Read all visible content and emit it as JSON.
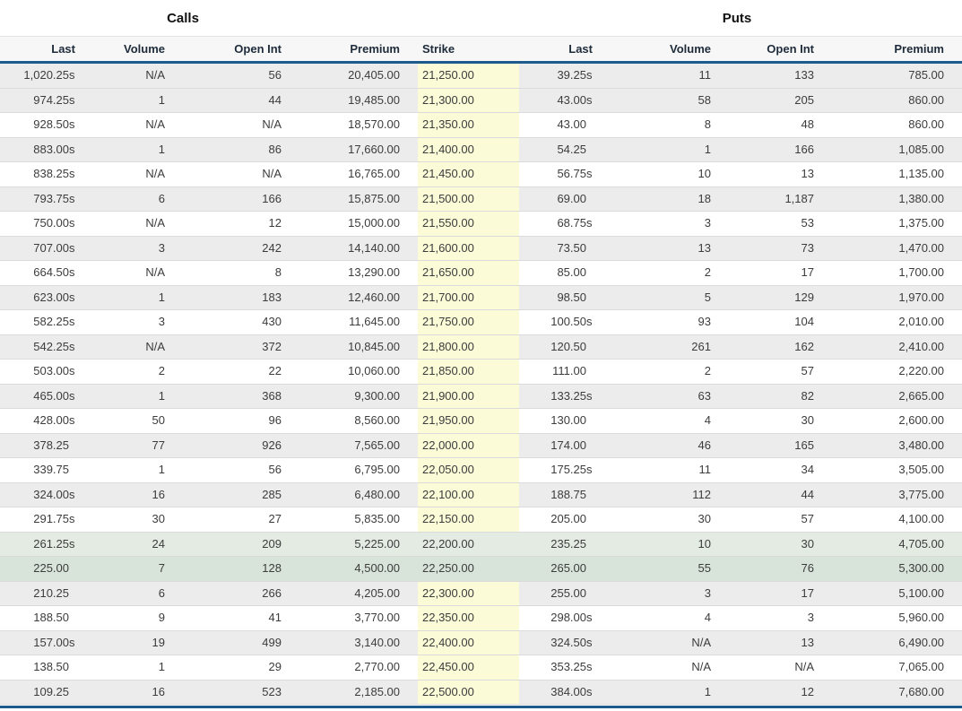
{
  "section_titles": {
    "calls": "Calls",
    "puts": "Puts"
  },
  "headers": {
    "calls": [
      "Last",
      "Volume",
      "Open Int",
      "Premium"
    ],
    "strike": "Strike",
    "puts": [
      "Last",
      "Volume",
      "Open Int",
      "Premium"
    ]
  },
  "colors": {
    "header_underline": "#1e5b8d",
    "bottom_bar": "#1e5b8d",
    "strike_column_bg": "#fbfbd8",
    "alt_row_bg": "#ececec",
    "highlight_row_light_green": "#e3ebe3",
    "highlight_row_dark_green": "#d8e3d9"
  },
  "rows": [
    {
      "calls": [
        "1,020.25s",
        "N/A",
        "56",
        "20,405.00"
      ],
      "strike": "21,250.00",
      "puts": [
        "39.25s",
        "11",
        "133",
        "785.00"
      ],
      "hl": 0
    },
    {
      "calls": [
        "974.25s",
        "1",
        "44",
        "19,485.00"
      ],
      "strike": "21,300.00",
      "puts": [
        "43.00s",
        "58",
        "205",
        "860.00"
      ],
      "hl": 0
    },
    {
      "calls": [
        "928.50s",
        "N/A",
        "N/A",
        "18,570.00"
      ],
      "strike": "21,350.00",
      "puts": [
        "43.00",
        "8",
        "48",
        "860.00"
      ],
      "hl": 0
    },
    {
      "calls": [
        "883.00s",
        "1",
        "86",
        "17,660.00"
      ],
      "strike": "21,400.00",
      "puts": [
        "54.25",
        "1",
        "166",
        "1,085.00"
      ],
      "hl": 0
    },
    {
      "calls": [
        "838.25s",
        "N/A",
        "N/A",
        "16,765.00"
      ],
      "strike": "21,450.00",
      "puts": [
        "56.75s",
        "10",
        "13",
        "1,135.00"
      ],
      "hl": 0
    },
    {
      "calls": [
        "793.75s",
        "6",
        "166",
        "15,875.00"
      ],
      "strike": "21,500.00",
      "puts": [
        "69.00",
        "18",
        "1,187",
        "1,380.00"
      ],
      "hl": 0
    },
    {
      "calls": [
        "750.00s",
        "N/A",
        "12",
        "15,000.00"
      ],
      "strike": "21,550.00",
      "puts": [
        "68.75s",
        "3",
        "53",
        "1,375.00"
      ],
      "hl": 0
    },
    {
      "calls": [
        "707.00s",
        "3",
        "242",
        "14,140.00"
      ],
      "strike": "21,600.00",
      "puts": [
        "73.50",
        "13",
        "73",
        "1,470.00"
      ],
      "hl": 0
    },
    {
      "calls": [
        "664.50s",
        "N/A",
        "8",
        "13,290.00"
      ],
      "strike": "21,650.00",
      "puts": [
        "85.00",
        "2",
        "17",
        "1,700.00"
      ],
      "hl": 0
    },
    {
      "calls": [
        "623.00s",
        "1",
        "183",
        "12,460.00"
      ],
      "strike": "21,700.00",
      "puts": [
        "98.50",
        "5",
        "129",
        "1,970.00"
      ],
      "hl": 0
    },
    {
      "calls": [
        "582.25s",
        "3",
        "430",
        "11,645.00"
      ],
      "strike": "21,750.00",
      "puts": [
        "100.50s",
        "93",
        "104",
        "2,010.00"
      ],
      "hl": 0
    },
    {
      "calls": [
        "542.25s",
        "N/A",
        "372",
        "10,845.00"
      ],
      "strike": "21,800.00",
      "puts": [
        "120.50",
        "261",
        "162",
        "2,410.00"
      ],
      "hl": 0
    },
    {
      "calls": [
        "503.00s",
        "2",
        "22",
        "10,060.00"
      ],
      "strike": "21,850.00",
      "puts": [
        "111.00",
        "2",
        "57",
        "2,220.00"
      ],
      "hl": 0
    },
    {
      "calls": [
        "465.00s",
        "1",
        "368",
        "9,300.00"
      ],
      "strike": "21,900.00",
      "puts": [
        "133.25s",
        "63",
        "82",
        "2,665.00"
      ],
      "hl": 0
    },
    {
      "calls": [
        "428.00s",
        "50",
        "96",
        "8,560.00"
      ],
      "strike": "21,950.00",
      "puts": [
        "130.00",
        "4",
        "30",
        "2,600.00"
      ],
      "hl": 0
    },
    {
      "calls": [
        "378.25",
        "77",
        "926",
        "7,565.00"
      ],
      "strike": "22,000.00",
      "puts": [
        "174.00",
        "46",
        "165",
        "3,480.00"
      ],
      "hl": 0
    },
    {
      "calls": [
        "339.75",
        "1",
        "56",
        "6,795.00"
      ],
      "strike": "22,050.00",
      "puts": [
        "175.25s",
        "11",
        "34",
        "3,505.00"
      ],
      "hl": 0
    },
    {
      "calls": [
        "324.00s",
        "16",
        "285",
        "6,480.00"
      ],
      "strike": "22,100.00",
      "puts": [
        "188.75",
        "112",
        "44",
        "3,775.00"
      ],
      "hl": 0
    },
    {
      "calls": [
        "291.75s",
        "30",
        "27",
        "5,835.00"
      ],
      "strike": "22,150.00",
      "puts": [
        "205.00",
        "30",
        "57",
        "4,100.00"
      ],
      "hl": 0
    },
    {
      "calls": [
        "261.25s",
        "24",
        "209",
        "5,225.00"
      ],
      "strike": "22,200.00",
      "puts": [
        "235.25",
        "10",
        "30",
        "4,705.00"
      ],
      "hl": 1
    },
    {
      "calls": [
        "225.00",
        "7",
        "128",
        "4,500.00"
      ],
      "strike": "22,250.00",
      "puts": [
        "265.00",
        "55",
        "76",
        "5,300.00"
      ],
      "hl": 2
    },
    {
      "calls": [
        "210.25",
        "6",
        "266",
        "4,205.00"
      ],
      "strike": "22,300.00",
      "puts": [
        "255.00",
        "3",
        "17",
        "5,100.00"
      ],
      "hl": 0
    },
    {
      "calls": [
        "188.50",
        "9",
        "41",
        "3,770.00"
      ],
      "strike": "22,350.00",
      "puts": [
        "298.00s",
        "4",
        "3",
        "5,960.00"
      ],
      "hl": 0
    },
    {
      "calls": [
        "157.00s",
        "19",
        "499",
        "3,140.00"
      ],
      "strike": "22,400.00",
      "puts": [
        "324.50s",
        "N/A",
        "13",
        "6,490.00"
      ],
      "hl": 0
    },
    {
      "calls": [
        "138.50",
        "1",
        "29",
        "2,770.00"
      ],
      "strike": "22,450.00",
      "puts": [
        "353.25s",
        "N/A",
        "N/A",
        "7,065.00"
      ],
      "hl": 0
    },
    {
      "calls": [
        "109.25",
        "16",
        "523",
        "2,185.00"
      ],
      "strike": "22,500.00",
      "puts": [
        "384.00s",
        "1",
        "12",
        "7,680.00"
      ],
      "hl": 0
    }
  ]
}
